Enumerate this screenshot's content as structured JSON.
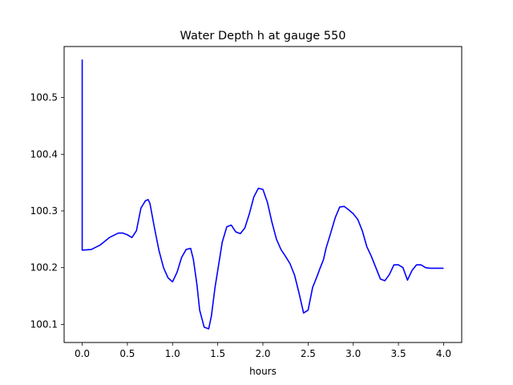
{
  "chart_data": {
    "type": "line",
    "title": "Water Depth h at gauge 550",
    "xlabel": "hours",
    "ylabel": "",
    "xlim": [
      -0.2,
      4.2
    ],
    "ylim": [
      100.068,
      100.59
    ],
    "xticks": [
      0.0,
      0.5,
      1.0,
      1.5,
      2.0,
      2.5,
      3.0,
      3.5,
      4.0
    ],
    "xtick_labels": [
      "0.0",
      "0.5",
      "1.0",
      "1.5",
      "2.0",
      "2.5",
      "3.0",
      "3.5",
      "4.0"
    ],
    "yticks": [
      100.1,
      100.2,
      100.3,
      100.4,
      100.5
    ],
    "ytick_labels": [
      "100.1",
      "100.2",
      "100.3",
      "100.4",
      "100.5"
    ],
    "grid": false,
    "series": [
      {
        "color": "#0000ff",
        "x": [
          0.0,
          0.0,
          0.001,
          0.1,
          0.2,
          0.3,
          0.4,
          0.45,
          0.5,
          0.55,
          0.6,
          0.65,
          0.7,
          0.73,
          0.75,
          0.8,
          0.85,
          0.9,
          0.95,
          1.0,
          1.05,
          1.1,
          1.15,
          1.2,
          1.23,
          1.27,
          1.3,
          1.35,
          1.4,
          1.43,
          1.47,
          1.5,
          1.55,
          1.6,
          1.65,
          1.7,
          1.75,
          1.8,
          1.85,
          1.9,
          1.95,
          2.0,
          2.05,
          2.1,
          2.15,
          2.2,
          2.25,
          2.3,
          2.35,
          2.4,
          2.45,
          2.5,
          2.55,
          2.6,
          2.63,
          2.67,
          2.7,
          2.75,
          2.8,
          2.85,
          2.9,
          2.95,
          3.0,
          3.05,
          3.1,
          3.15,
          3.2,
          3.25,
          3.3,
          3.35,
          3.4,
          3.45,
          3.5,
          3.55,
          3.6,
          3.65,
          3.7,
          3.75,
          3.8,
          3.85,
          3.9,
          3.93,
          3.97,
          4.0
        ],
        "y": [
          100.567,
          100.231,
          100.231,
          100.232,
          100.24,
          100.253,
          100.261,
          100.261,
          100.258,
          100.253,
          100.265,
          100.305,
          100.318,
          100.32,
          100.313,
          100.27,
          100.23,
          100.2,
          100.182,
          100.175,
          100.192,
          100.218,
          100.232,
          100.234,
          100.215,
          100.17,
          100.125,
          100.095,
          100.092,
          100.115,
          100.165,
          100.195,
          100.245,
          100.272,
          100.275,
          100.263,
          100.26,
          100.27,
          100.295,
          100.325,
          100.34,
          100.338,
          100.315,
          100.28,
          100.25,
          100.232,
          100.22,
          100.207,
          100.187,
          100.155,
          100.12,
          100.125,
          100.165,
          100.185,
          100.198,
          100.214,
          100.235,
          100.261,
          100.288,
          100.307,
          100.308,
          100.302,
          100.295,
          100.285,
          100.265,
          100.237,
          100.22,
          100.2,
          100.18,
          100.177,
          100.188,
          100.205,
          100.205,
          100.2,
          100.178,
          100.195,
          100.205,
          100.205,
          100.2,
          100.199,
          100.199,
          100.199,
          100.199,
          100.199
        ]
      }
    ]
  }
}
